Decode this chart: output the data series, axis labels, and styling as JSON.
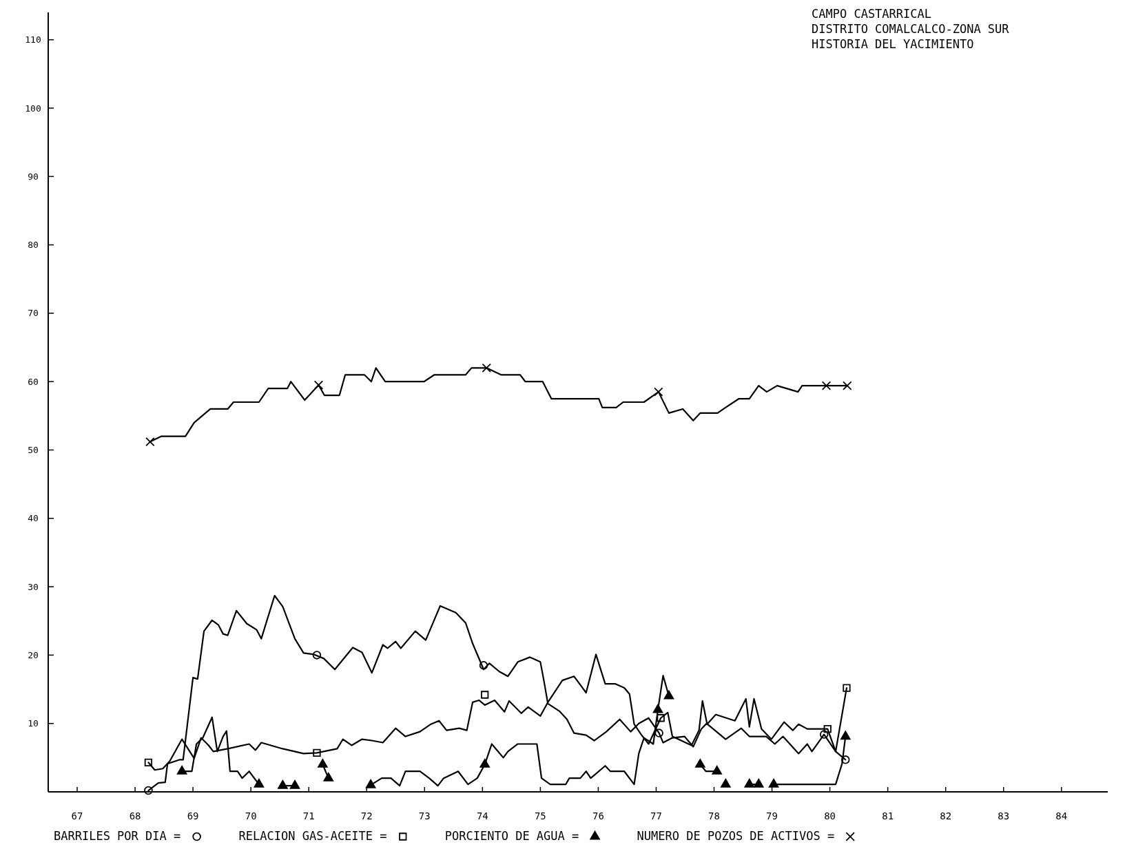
{
  "chart_data": {
    "type": "line",
    "title": "CAMPO CASTARRICAL",
    "subtitle": "DISTRITO COMALCALCO-ZONA SUR\nHISTORIA DEL YACIMIENTO",
    "xlim": [
      66.5,
      84.8
    ],
    "xticks": [
      67,
      68,
      69,
      70,
      71,
      72,
      73,
      74,
      75,
      76,
      77,
      78,
      79,
      80,
      81,
      82,
      83,
      84
    ],
    "ylim": [
      0,
      114
    ],
    "yticks": [
      {
        "value": 0,
        "label": null
      },
      10,
      20,
      30,
      40,
      50,
      60,
      70,
      80,
      90,
      100,
      110
    ],
    "grid": false,
    "legend": "bottom",
    "line_style": "solid",
    "series": [
      {
        "color": "#000000",
        "x": [
          68.23,
          68.4,
          68.52,
          68.56,
          68.77,
          68.83,
          69.0,
          69.08,
          69.19,
          69.33,
          69.44,
          69.52,
          69.6,
          69.75,
          69.93,
          70.1,
          70.18,
          70.41,
          70.55,
          70.76,
          70.91,
          71.09,
          71.26,
          71.45,
          71.76,
          71.92,
          72.09,
          72.28,
          72.36,
          72.5,
          72.59,
          72.84,
          73.02,
          73.27,
          73.54,
          73.71,
          73.83,
          74.02,
          74.12,
          74.29,
          74.44,
          74.61,
          74.82,
          75.0,
          75.06,
          75.13,
          75.33,
          75.46,
          75.58,
          75.79,
          75.93,
          76.14,
          76.37,
          76.56,
          76.7,
          76.87,
          77.05,
          77.12,
          77.28,
          77.49,
          77.64,
          77.78,
          77.87,
          78.2,
          78.47,
          78.61,
          78.9,
          79.05,
          79.19,
          79.46,
          79.61,
          79.69,
          79.9,
          80.1,
          80.27
        ],
        "values": [
          0.2,
          1.3,
          1.4,
          4.1,
          4.7,
          4.7,
          16.7,
          16.5,
          23.5,
          25.1,
          24.4,
          23.1,
          22.9,
          26.5,
          24.6,
          23.7,
          22.4,
          28.7,
          27.1,
          22.4,
          20.3,
          20.1,
          19.5,
          17.9,
          21.1,
          20.4,
          17.4,
          21.5,
          21.0,
          22.0,
          21.0,
          23.5,
          22.2,
          27.2,
          26.2,
          24.7,
          21.7,
          17.9,
          18.8,
          17.6,
          16.9,
          19.0,
          19.7,
          19.0,
          16.3,
          12.9,
          11.8,
          10.6,
          8.6,
          8.3,
          7.5,
          8.8,
          10.6,
          8.8,
          10.0,
          10.8,
          8.6,
          7.2,
          7.9,
          8.1,
          6.6,
          9.2,
          10.0,
          7.7,
          9.3,
          8.1,
          8.1,
          7.0,
          8.1,
          5.6,
          7.0,
          5.9,
          8.4,
          5.9,
          4.7
        ]
      },
      {
        "color": "#000000",
        "x": [
          68.23,
          68.34,
          68.48,
          68.6,
          68.81,
          69.02,
          69.14,
          69.27,
          69.35,
          69.6,
          69.97,
          70.08,
          70.18,
          70.55,
          70.91,
          71.14,
          71.49,
          71.59,
          71.74,
          71.92,
          72.09,
          72.28,
          72.5,
          72.67,
          72.92,
          73.11,
          73.25,
          73.38,
          73.6,
          73.73,
          73.83,
          73.94,
          74.04,
          74.21,
          74.38,
          74.46,
          74.67,
          74.79,
          75.0,
          75.13,
          75.38,
          75.58,
          75.79,
          75.96,
          76.12,
          76.29,
          76.45,
          76.54,
          76.62,
          76.74,
          76.87,
          77.08,
          77.2,
          77.28,
          77.61,
          77.74,
          77.8,
          77.88,
          78.03,
          78.36,
          78.55,
          78.61,
          78.69,
          78.82,
          78.99,
          79.21,
          79.36,
          79.46,
          79.61,
          79.81,
          79.96,
          80.1,
          80.29
        ],
        "values": [
          4.3,
          3.2,
          3.4,
          4.5,
          7.7,
          4.9,
          7.9,
          6.8,
          5.9,
          6.3,
          7.0,
          6.1,
          7.2,
          6.3,
          5.6,
          5.7,
          6.3,
          7.7,
          6.8,
          7.7,
          7.5,
          7.2,
          9.3,
          8.1,
          8.8,
          9.9,
          10.4,
          9.0,
          9.3,
          9.0,
          13.1,
          13.4,
          12.7,
          13.4,
          11.7,
          13.3,
          11.5,
          12.4,
          11.1,
          13.1,
          16.3,
          16.9,
          14.5,
          20.1,
          15.8,
          15.8,
          15.2,
          14.3,
          9.9,
          8.4,
          7.0,
          10.8,
          11.6,
          8.1,
          6.8,
          9.0,
          13.3,
          9.9,
          11.3,
          10.4,
          13.6,
          9.5,
          13.6,
          9.2,
          7.7,
          10.2,
          9.0,
          9.9,
          9.2,
          9.2,
          9.2,
          5.9,
          15.2
        ]
      },
      {
        "color": "#000000",
        "x": [
          68.81,
          68.98,
          69.06,
          69.17,
          69.33,
          69.42,
          69.52,
          69.58,
          69.64,
          69.77,
          69.85,
          69.97,
          70.14
        ],
        "values": [
          3.0,
          3.0,
          7.0,
          7.9,
          10.9,
          5.9,
          8.1,
          8.9,
          3.0,
          3.0,
          2.0,
          3.0,
          1.1
        ]
      },
      {
        "color": "#000000",
        "x": [
          70.55,
          70.76
        ],
        "values": [
          0.9,
          0.9
        ]
      },
      {
        "color": "#000000",
        "x": [
          71.24,
          71.34
        ],
        "values": [
          4.0,
          2.0
        ]
      },
      {
        "color": "#000000",
        "x": [
          72.07,
          72.26,
          72.42,
          72.57,
          72.67,
          72.92,
          73.08,
          73.23,
          73.33,
          73.58,
          73.75,
          73.91,
          74.04,
          74.16,
          74.36,
          74.44,
          74.61,
          74.94,
          75.02,
          75.17,
          75.44,
          75.5,
          75.69,
          75.79,
          75.87,
          76.12,
          76.21,
          76.45,
          76.62,
          76.7,
          76.79,
          76.95,
          77.03,
          77.12,
          77.22
        ],
        "values": [
          1.0,
          2.0,
          2.0,
          0.9,
          3.0,
          3.0,
          2.0,
          0.9,
          2.0,
          3.0,
          1.1,
          2.0,
          4.0,
          7.0,
          5.0,
          5.9,
          7.0,
          7.0,
          2.0,
          1.1,
          1.1,
          2.0,
          2.0,
          3.0,
          2.0,
          3.8,
          3.0,
          3.0,
          1.1,
          5.6,
          7.9,
          7.0,
          12.0,
          17.0,
          14.0
        ]
      },
      {
        "color": "#000000",
        "x": [
          77.76,
          77.86,
          78.05
        ],
        "values": [
          4.0,
          3.0,
          3.0
        ]
      },
      {
        "color": "#000000",
        "x": [
          78.61,
          78.77
        ],
        "values": [
          1.1,
          1.1
        ]
      },
      {
        "color": "#000000",
        "x": [
          79.03,
          79.94,
          80.1,
          80.21,
          80.27
        ],
        "values": [
          1.1,
          1.1,
          1.1,
          4.1,
          8.1
        ]
      },
      {
        "color": "#000000",
        "x": [
          68.26,
          68.45,
          68.87,
          69.02,
          69.3,
          69.6,
          69.7,
          70.14,
          70.3,
          70.63,
          70.69,
          70.93,
          71.17,
          71.27,
          71.53,
          71.63,
          71.96,
          72.08,
          72.16,
          72.32,
          72.99,
          73.17,
          73.71,
          73.81,
          74.07,
          74.32,
          74.65,
          74.74,
          75.04,
          75.19,
          76.01,
          76.07,
          76.31,
          76.43,
          76.79,
          77.04,
          77.22,
          77.46,
          77.64,
          77.76,
          78.06,
          78.18,
          78.43,
          78.61,
          78.77,
          78.91,
          79.09,
          79.45,
          79.52,
          79.94,
          80.3
        ],
        "values": [
          51.2,
          52,
          52,
          54,
          56,
          56,
          57,
          57,
          59,
          59,
          60,
          57.3,
          59.5,
          58,
          58,
          61,
          61,
          60,
          62,
          60,
          60,
          61,
          61,
          62,
          62,
          61,
          61,
          60,
          60,
          57.5,
          57.5,
          56.2,
          56.2,
          57,
          57,
          58.5,
          55.4,
          56,
          54.3,
          55.4,
          55.4,
          56.1,
          57.5,
          57.5,
          59.4,
          58.5,
          59.4,
          58.5,
          59.4,
          59.4,
          59.4
        ]
      },
      {
        "type": "scatter",
        "name": "BARRILES POR DIA =",
        "color": "#000000",
        "marker": "circle",
        "x": [
          68.23,
          71.14,
          74.02,
          77.05,
          79.9,
          80.27
        ],
        "values": [
          0.2,
          20,
          18.5,
          8.6,
          8.4,
          4.7
        ]
      },
      {
        "type": "scatter",
        "name": "RELACION GAS-ACEITE =",
        "color": "#000000",
        "marker": "square",
        "x": [
          68.23,
          71.14,
          74.04,
          77.08,
          79.96,
          80.29
        ],
        "values": [
          4.3,
          5.7,
          14.2,
          10.8,
          9.2,
          15.2
        ]
      },
      {
        "type": "scatter",
        "name": "PORCIENTO DE AGUA =",
        "color": "#000000",
        "marker": "triangle",
        "x": [
          68.81,
          70.14,
          70.55,
          70.76,
          71.24,
          71.34,
          72.07,
          74.04,
          77.03,
          77.22,
          77.76,
          78.05,
          78.2,
          78.61,
          78.77,
          79.03,
          80.27
        ],
        "values": [
          3.0,
          1.1,
          0.9,
          0.9,
          4.0,
          2.0,
          1.0,
          4.0,
          12.0,
          14.0,
          4.0,
          3.0,
          1.1,
          1.1,
          1.1,
          1.1,
          8.1
        ]
      },
      {
        "type": "scatter",
        "name": "NUMERO DE POZOS DE ACTIVOS =",
        "color": "#000000",
        "marker": "cross",
        "x": [
          68.26,
          71.17,
          74.07,
          77.04,
          79.94,
          80.3
        ],
        "values": [
          51.2,
          59.5,
          62,
          58.5,
          59.4,
          59.4
        ]
      }
    ]
  }
}
